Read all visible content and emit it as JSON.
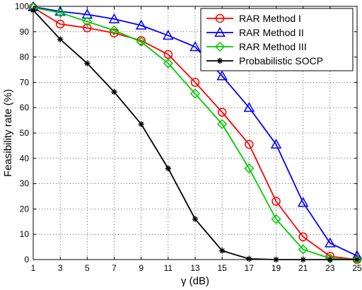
{
  "chart_data": {
    "type": "line",
    "title": "",
    "xlabel": "γ (dB)",
    "ylabel": "Feasibility rate (%)",
    "xlim": [
      1,
      25
    ],
    "ylim": [
      0,
      100
    ],
    "xticks": [
      1,
      3,
      5,
      7,
      9,
      11,
      13,
      15,
      17,
      19,
      21,
      23,
      25
    ],
    "yticks": [
      0,
      10,
      20,
      30,
      40,
      50,
      60,
      70,
      80,
      90,
      100
    ],
    "grid": true,
    "legend_position": "top-right",
    "x": [
      1,
      3,
      5,
      7,
      9,
      11,
      13,
      15,
      17,
      19,
      21,
      23,
      25
    ],
    "series": [
      {
        "name": "RAR Method I",
        "color": "#ff0000",
        "marker": "circle",
        "values": [
          99.5,
          93,
          91.5,
          89.5,
          86.5,
          81,
          70,
          58.2,
          45.5,
          23,
          9,
          1.3,
          0
        ]
      },
      {
        "name": "RAR Method II",
        "color": "#0000ff",
        "marker": "triangle",
        "values": [
          99.8,
          98,
          96.8,
          95,
          92.5,
          88.5,
          84,
          72.5,
          60,
          45.5,
          22.5,
          6.5,
          1.5
        ]
      },
      {
        "name": "RAR Method III",
        "color": "#00cc00",
        "marker": "diamond",
        "values": [
          99.5,
          97.5,
          94,
          90.5,
          86,
          77.5,
          65.5,
          53.5,
          36,
          16,
          4,
          0.5,
          0
        ]
      },
      {
        "name": "Probabilistic SOCP",
        "color": "#000000",
        "marker": "star",
        "values": [
          98.5,
          87,
          77.5,
          66.2,
          53.5,
          36,
          16,
          3.5,
          0.3,
          0,
          0,
          0,
          0
        ]
      }
    ]
  }
}
